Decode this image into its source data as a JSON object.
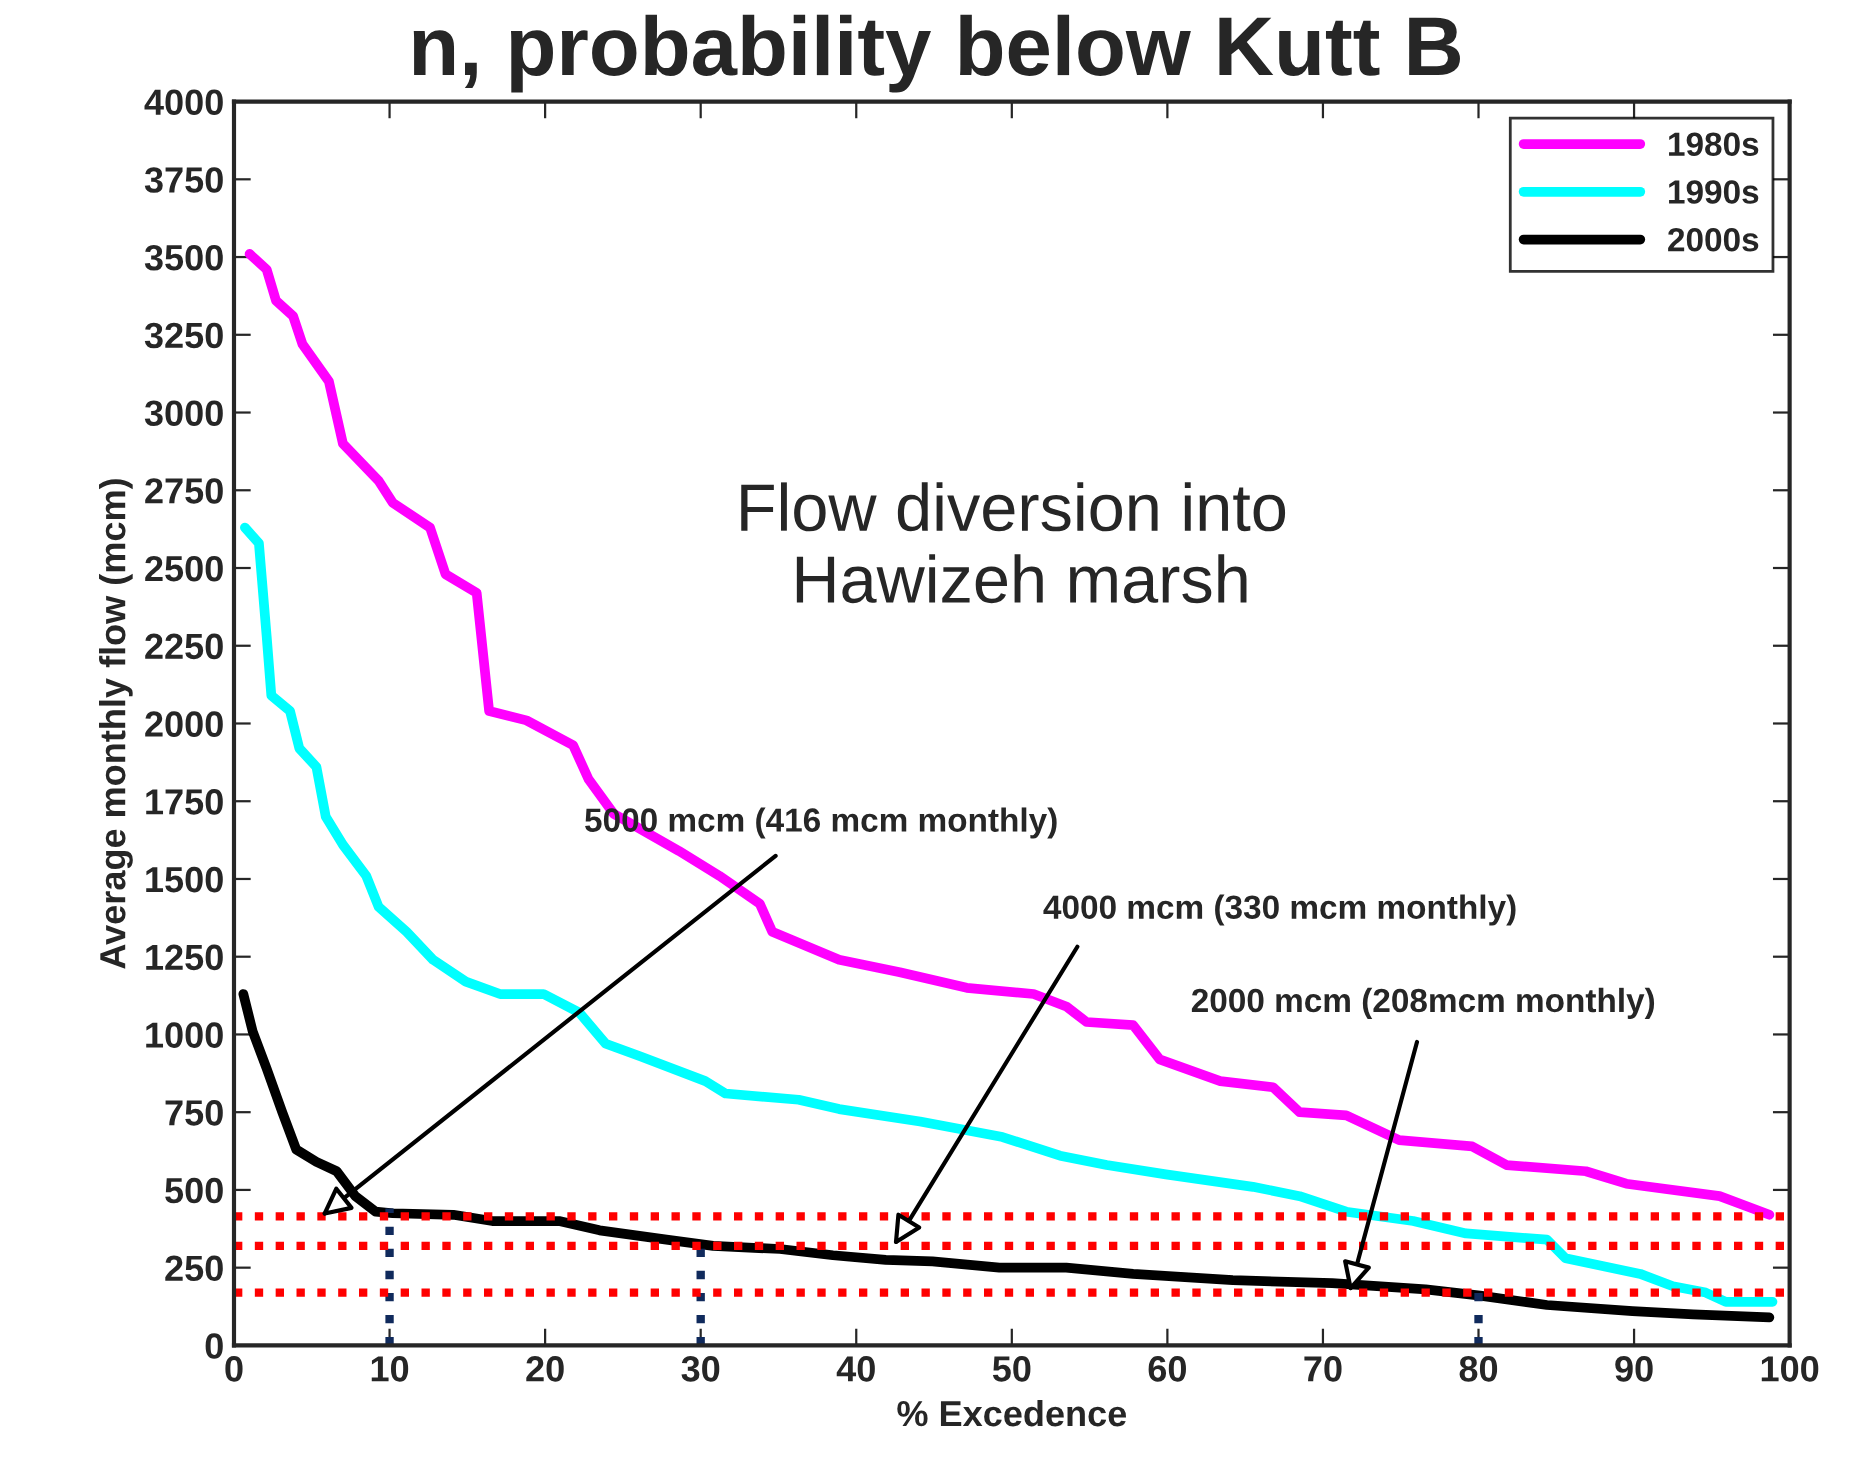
{
  "chart_data": {
    "type": "line",
    "title": "n, probability below Kutt B",
    "xlabel": "% Excedence",
    "ylabel": "Average monthly flow (mcm)",
    "xlim": [
      0,
      100
    ],
    "xticks": [
      0,
      10,
      20,
      30,
      40,
      50,
      60,
      70,
      80,
      90,
      100
    ],
    "ylim": [
      0,
      4000
    ],
    "yticks": [
      0,
      250,
      500,
      750,
      1000,
      1250,
      1500,
      1750,
      2000,
      2250,
      2500,
      2750,
      3000,
      3250,
      3500,
      3750,
      4000
    ],
    "grid": false,
    "legend": "top right",
    "marker": "none",
    "line_style": "solid",
    "series": [
      {
        "name": "1980s",
        "color": "#ff00ff",
        "x": [
          1.0,
          2.1,
          2.7,
          3.8,
          4.4,
          6.1,
          7.0,
          9.3,
          10.2,
          12.6,
          13.6,
          15.6,
          16.4,
          18.8,
          21.8,
          22.8,
          24.4,
          28.6,
          31.2,
          33.8,
          34.6,
          38.9,
          42.8,
          47.1,
          51.4,
          53.5,
          54.8,
          57.8,
          59.5,
          63.4,
          66.8,
          68.5,
          71.5,
          74.9,
          79.6,
          81.8,
          86.9,
          89.5,
          95.5,
          98.7
        ],
        "values": [
          3510,
          3460,
          3360,
          3310,
          3220,
          3100,
          2900,
          2780,
          2710,
          2630,
          2480,
          2420,
          2040,
          2010,
          1930,
          1820,
          1710,
          1590,
          1510,
          1420,
          1330,
          1240,
          1200,
          1150,
          1130,
          1090,
          1040,
          1030,
          920,
          850,
          830,
          750,
          740,
          660,
          640,
          580,
          560,
          520,
          480,
          420
        ]
      },
      {
        "name": "1990s",
        "color": "#00ffff",
        "x": [
          0.7,
          1.6,
          2.1,
          2.4,
          3.6,
          4.2,
          5.3,
          5.9,
          7.0,
          8.5,
          9.3,
          11.1,
          12.8,
          14.9,
          17.1,
          19.9,
          22.2,
          23.9,
          26.1,
          30.3,
          31.6,
          36.3,
          38.9,
          44.1,
          49.4,
          53.1,
          56.1,
          59.9,
          65.5,
          68.5,
          71.5,
          75.8,
          79.2,
          84.4,
          85.6,
          90.4,
          92.5,
          94.6,
          95.9,
          98.9
        ],
        "values": [
          2630,
          2580,
          2280,
          2090,
          2040,
          1920,
          1860,
          1700,
          1610,
          1510,
          1410,
          1330,
          1240,
          1170,
          1130,
          1130,
          1070,
          970,
          930,
          850,
          810,
          790,
          760,
          720,
          670,
          610,
          580,
          550,
          510,
          480,
          430,
          400,
          360,
          340,
          280,
          230,
          190,
          170,
          140,
          140
        ]
      },
      {
        "name": "2000s",
        "color": "#000000",
        "x": [
          0.6,
          1.2,
          2.1,
          3.1,
          4.0,
          5.3,
          6.6,
          7.8,
          9.1,
          10.2,
          14.1,
          16.6,
          20.9,
          23.5,
          27.8,
          30.8,
          35.1,
          38.5,
          41.9,
          44.9,
          49.2,
          53.5,
          57.8,
          64.2,
          70.6,
          76.6,
          80.1,
          84.4,
          89.9,
          93.8,
          98.7
        ],
        "values": [
          1130,
          1010,
          890,
          750,
          630,
          590,
          560,
          480,
          430,
          425,
          420,
          400,
          400,
          370,
          340,
          320,
          310,
          290,
          275,
          270,
          250,
          250,
          230,
          210,
          200,
          180,
          160,
          130,
          110,
          100,
          90
        ]
      },
      {
        "color": "#102a5c",
        "line_style": "dotted",
        "x": [
          10,
          10
        ],
        "values": [
          0,
          440
        ]
      },
      {
        "color": "#102a5c",
        "line_style": "dotted",
        "x": [
          30,
          30
        ],
        "values": [
          0,
          340
        ]
      },
      {
        "color": "#102a5c",
        "line_style": "dotted",
        "x": [
          80,
          80
        ],
        "values": [
          0,
          190
        ]
      }
    ],
    "ref_lines": [
      {
        "axis": "y",
        "value": 415,
        "color": "#ff0000",
        "line_style": "dotted"
      },
      {
        "axis": "y",
        "value": 320,
        "color": "#ff0000",
        "line_style": "dotted"
      },
      {
        "axis": "y",
        "value": 170,
        "color": "#ff0000",
        "line_style": "dotted"
      }
    ],
    "annotations": [
      "Flow diversion into\n Hawizeh marsh",
      {
        "text": "5000 mcm (416 mcm monthly)",
        "x": 5.6,
        "y": 415
      },
      {
        "text": "4000 mcm (330 mcm monthly)",
        "x": 42.4,
        "y": 320
      },
      {
        "text": "2000 mcm (208mcm monthly)",
        "x": 71.7,
        "y": 170
      }
    ]
  }
}
